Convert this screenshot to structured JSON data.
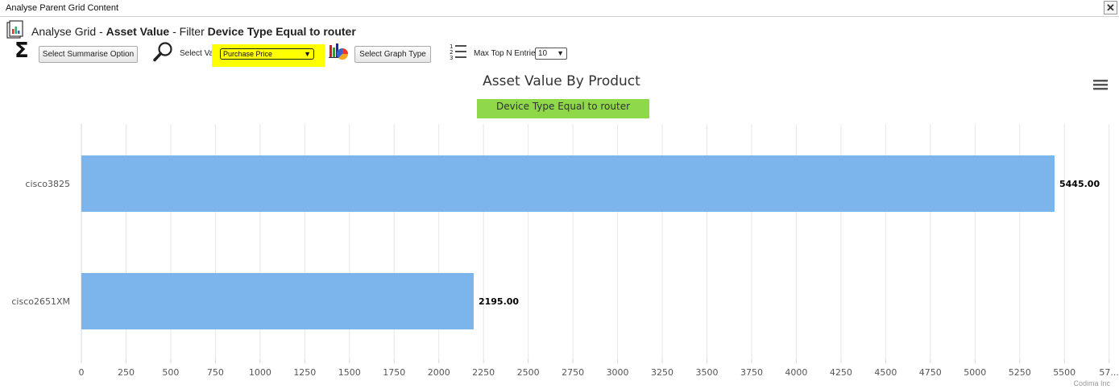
{
  "window": {
    "title": "Analyse Parent Grid Content",
    "close_label": "✕"
  },
  "header": {
    "prefix": "Analyse Grid - ",
    "grid_name": "Asset Value",
    "filter_prefix": " - Filter ",
    "filter_text": "Device Type Equal to router"
  },
  "toolbar": {
    "summarise_icon": "Σ",
    "summarise_button": "Select Summarise Option",
    "select_value_label": "Select Value",
    "select_value_selected": "Purchase Price",
    "graph_type_button": "Select Graph Type",
    "max_top_label": "Max Top N Entries",
    "max_top_selected": "10",
    "highlight_color": "#ffff00"
  },
  "chart": {
    "title": "Asset Value By Product",
    "subtitle": "Device Type Equal to router",
    "subtitle_bg": "#8ed84a",
    "bar_color": "#7cb5ec",
    "credit": "Codima Inc"
  },
  "chart_data": {
    "type": "bar",
    "orientation": "horizontal",
    "title": "Asset Value By Product",
    "subtitle": "Device Type Equal to router",
    "categories": [
      "cisco3825",
      "cisco2651XM"
    ],
    "values": [
      5445.0,
      2195.0
    ],
    "data_labels": [
      "5445.00",
      "2195.00"
    ],
    "x_ticks": [
      "0",
      "250",
      "500",
      "750",
      "1000",
      "1250",
      "1500",
      "1750",
      "2000",
      "2250",
      "2500",
      "2750",
      "3000",
      "3250",
      "3500",
      "3750",
      "4000",
      "4250",
      "4500",
      "4750",
      "5000",
      "5250",
      "5500",
      "57..."
    ],
    "xlim": [
      0,
      5750
    ],
    "grid": true,
    "legend": false
  }
}
